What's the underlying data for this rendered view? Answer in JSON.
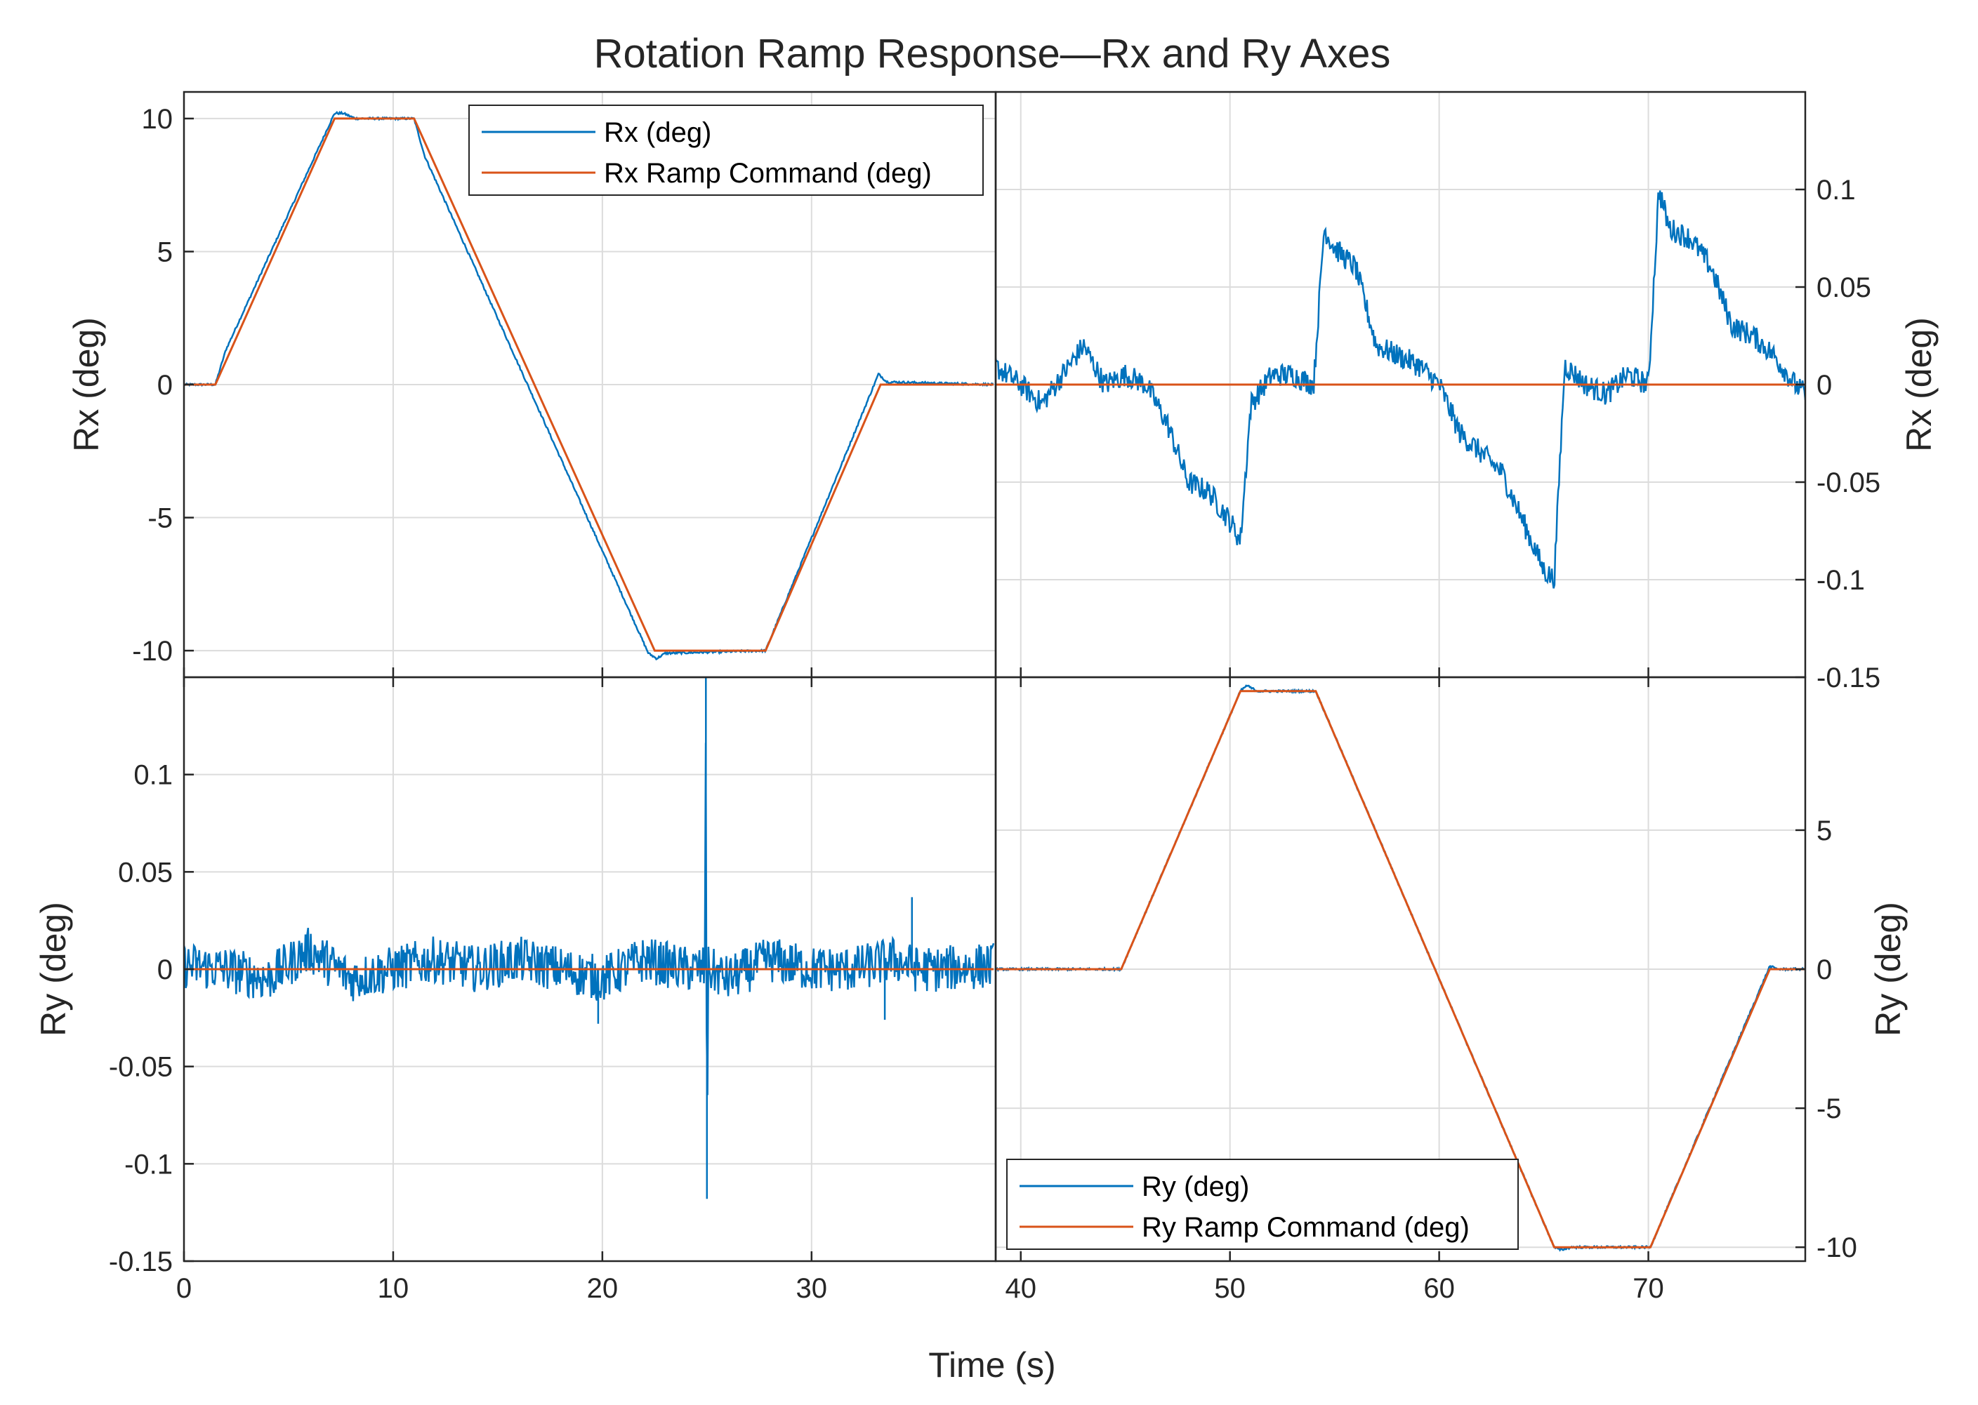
{
  "chart_data": {
    "type": "line",
    "title": "Rotation Ramp Response—Rx and Ry Axes",
    "xlabel": "Time (s)",
    "xlim": [
      0,
      77.5
    ],
    "xticks": [
      "0",
      "10",
      "20",
      "30",
      "40",
      "50",
      "60",
      "70"
    ],
    "colors": {
      "measured": "#0072BD",
      "command": "#D95319"
    },
    "panels": [
      {
        "id": "rx-large",
        "ylabel": "Rx (deg)",
        "ylim": [
          -11,
          11
        ],
        "yticks": [
          "-10",
          "-5",
          "0",
          "5",
          "10"
        ],
        "xlim": [
          0,
          38.7
        ],
        "legend": [
          "Rx (deg)",
          "Rx Ramp Command (deg)"
        ],
        "legend_position": "top-right",
        "command": [
          [
            0,
            0
          ],
          [
            1.5,
            0
          ],
          [
            7.2,
            10
          ],
          [
            11,
            10
          ],
          [
            22.5,
            -10
          ],
          [
            27.8,
            -10
          ],
          [
            33.3,
            0
          ],
          [
            38.7,
            0
          ]
        ],
        "measured": [
          [
            0,
            0
          ],
          [
            1.5,
            0
          ],
          [
            2,
            1.3
          ],
          [
            7.2,
            10.2
          ],
          [
            7.6,
            10.2
          ],
          [
            8.2,
            10
          ],
          [
            11,
            10
          ],
          [
            11.5,
            8.6
          ],
          [
            22.2,
            -10.1
          ],
          [
            22.6,
            -10.3
          ],
          [
            23,
            -10.1
          ],
          [
            27.8,
            -10
          ],
          [
            33.2,
            0.4
          ],
          [
            33.6,
            0.1
          ],
          [
            38.7,
            0
          ]
        ]
      },
      {
        "id": "rx-small",
        "ylabel": "Rx (deg)",
        "ylim": [
          -0.15,
          0.15
        ],
        "yticks": [
          "-0.15",
          "-0.1",
          "-0.05",
          "0",
          "0.05",
          "0.1"
        ],
        "xlim": [
          38.7,
          77.5
        ],
        "command": [
          [
            38.7,
            0
          ],
          [
            77.5,
            0
          ]
        ],
        "measured": [
          [
            38.7,
            0.01
          ],
          [
            40,
            0.0
          ],
          [
            41,
            -0.01
          ],
          [
            42,
            0.005
          ],
          [
            43,
            0.02
          ],
          [
            44,
            0.0
          ],
          [
            45,
            0.005
          ],
          [
            46,
            0.0
          ],
          [
            47,
            -0.02
          ],
          [
            48,
            -0.05
          ],
          [
            49,
            -0.055
          ],
          [
            50,
            -0.07
          ],
          [
            50.5,
            -0.08
          ],
          [
            51,
            -0.01
          ],
          [
            52,
            0.005
          ],
          [
            53,
            0.005
          ],
          [
            54,
            0.0
          ],
          [
            54.5,
            0.08
          ],
          [
            55,
            0.07
          ],
          [
            56,
            0.06
          ],
          [
            57,
            0.02
          ],
          [
            58,
            0.015
          ],
          [
            59,
            0.01
          ],
          [
            60,
            0.0
          ],
          [
            61,
            -0.025
          ],
          [
            62,
            -0.035
          ],
          [
            63,
            -0.045
          ],
          [
            64,
            -0.07
          ],
          [
            65,
            -0.095
          ],
          [
            65.5,
            -0.1
          ],
          [
            66,
            0.01
          ],
          [
            67,
            0.0
          ],
          [
            68,
            -0.005
          ],
          [
            69,
            0.005
          ],
          [
            70,
            0.0
          ],
          [
            70.5,
            0.1
          ],
          [
            71,
            0.08
          ],
          [
            72,
            0.075
          ],
          [
            73,
            0.06
          ],
          [
            74,
            0.03
          ],
          [
            75,
            0.025
          ],
          [
            76,
            0.015
          ],
          [
            77,
            0.0
          ],
          [
            77.5,
            -0.005
          ]
        ]
      },
      {
        "id": "ry-small",
        "ylabel": "Ry (deg)",
        "ylim": [
          -0.15,
          0.15
        ],
        "yticks": [
          "-0.15",
          "-0.1",
          "-0.05",
          "0",
          "0.05",
          "0.1"
        ],
        "xlim": [
          0,
          38.7
        ],
        "command": [
          [
            0,
            0
          ],
          [
            38.7,
            0
          ]
        ],
        "measured": [
          [
            0,
            0.002
          ],
          [
            2,
            0.0
          ],
          [
            4,
            -0.005
          ],
          [
            6,
            0.01
          ],
          [
            8,
            -0.005
          ],
          [
            10,
            0.0
          ],
          [
            12,
            0.005
          ],
          [
            14,
            0.0
          ],
          [
            16,
            0.005
          ],
          [
            18,
            0.0
          ],
          [
            20,
            -0.005
          ],
          [
            22,
            0.005
          ],
          [
            24,
            0.0
          ],
          [
            24.9,
            0.0
          ],
          [
            24.95,
            0.15
          ],
          [
            25.0,
            -0.118
          ],
          [
            25.05,
            0.0
          ],
          [
            26,
            -0.005
          ],
          [
            28,
            0.005
          ],
          [
            30,
            0.0
          ],
          [
            32,
            0.0
          ],
          [
            34,
            0.005
          ],
          [
            35,
            0.0
          ],
          [
            36,
            0.0
          ],
          [
            38.7,
            0.002
          ]
        ],
        "noise_amp": 0.012,
        "spikes": [
          [
            24.95,
            0.15
          ],
          [
            25.0,
            -0.118
          ],
          [
            34.8,
            0.037
          ],
          [
            33.5,
            -0.026
          ],
          [
            19.8,
            -0.028
          ],
          [
            5.8,
            0.016
          ]
        ]
      },
      {
        "id": "ry-large",
        "ylabel": "Ry (deg)",
        "ylim": [
          -10.5,
          10.5
        ],
        "yticks": [
          "-10",
          "-5",
          "0",
          "5"
        ],
        "xlim": [
          38.7,
          77.5
        ],
        "legend": [
          "Ry (deg)",
          "Ry Ramp Command (deg)"
        ],
        "legend_position": "bottom-left",
        "command": [
          [
            38.7,
            0
          ],
          [
            44.8,
            0
          ],
          [
            50.5,
            10
          ],
          [
            54.1,
            10
          ],
          [
            65.5,
            -10
          ],
          [
            70.1,
            -10
          ],
          [
            75.8,
            0
          ],
          [
            77.5,
            0
          ]
        ],
        "measured": [
          [
            38.7,
            0
          ],
          [
            44.8,
            0
          ],
          [
            50.5,
            10
          ],
          [
            50.8,
            10.2
          ],
          [
            51.3,
            10
          ],
          [
            54.1,
            10
          ],
          [
            65.5,
            -10
          ],
          [
            65.8,
            -10.1
          ],
          [
            66.3,
            -10
          ],
          [
            70.1,
            -10
          ],
          [
            75.8,
            0.1
          ],
          [
            76.2,
            0
          ],
          [
            77.5,
            0
          ]
        ]
      }
    ]
  }
}
